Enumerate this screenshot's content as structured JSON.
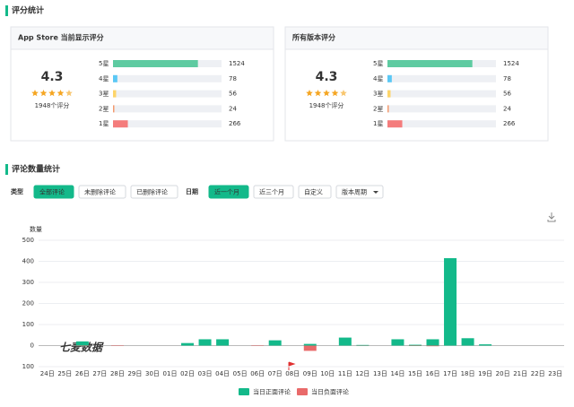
{
  "header": {
    "rating_title": "评分统计",
    "count_title": "评论数量统计"
  },
  "rating_panels": [
    {
      "title": "App Store 当前显示评分",
      "score": 4.3,
      "total_label": "1948个评分",
      "rows": [
        {
          "label": "5星",
          "count": 1524,
          "color": "#5ecba1"
        },
        {
          "label": "4星",
          "count": 78,
          "color": "#5bc8f5"
        },
        {
          "label": "3星",
          "count": 56,
          "color": "#fdd56a"
        },
        {
          "label": "2星",
          "count": 24,
          "color": "#f49a6e"
        },
        {
          "label": "1星",
          "count": 266,
          "color": "#f47c7c"
        }
      ]
    },
    {
      "title": "所有版本评分",
      "score": 4.3,
      "total_label": "1948个评分",
      "rows": [
        {
          "label": "5星",
          "count": 1524,
          "color": "#5ecba1"
        },
        {
          "label": "4星",
          "count": 78,
          "color": "#5bc8f5"
        },
        {
          "label": "3星",
          "count": 56,
          "color": "#fdd56a"
        },
        {
          "label": "2星",
          "count": 24,
          "color": "#f49a6e"
        },
        {
          "label": "1星",
          "count": 266,
          "color": "#f47c7c"
        }
      ]
    }
  ],
  "filters": {
    "type_label": "类型",
    "type_options": [
      "全部评论",
      "未删除评论",
      "已删除评论"
    ],
    "type_active": 0,
    "date_label": "日期",
    "date_options": [
      "近一个月",
      "近三个月",
      "自定义",
      "版本周期"
    ],
    "date_active": 0
  },
  "chart_data": {
    "type": "bar",
    "y_label": "数量",
    "watermark": "七麦数据",
    "categories": [
      "24日",
      "25日",
      "26日",
      "27日",
      "28日",
      "29日",
      "30日",
      "01日",
      "02日",
      "03日",
      "04日",
      "05日",
      "06日",
      "07日",
      "08日",
      "09日",
      "10日",
      "11日",
      "12日",
      "13日",
      "14日",
      "15日",
      "16日",
      "17日",
      "18日",
      "19日",
      "20日",
      "21日",
      "22日",
      "23日"
    ],
    "series": [
      {
        "name": "当日正面评论",
        "color": "#13b98a",
        "values": [
          0,
          0,
          20,
          0,
          0,
          0,
          0,
          0,
          12,
          30,
          30,
          0,
          0,
          25,
          0,
          8,
          0,
          38,
          3,
          0,
          30,
          4,
          30,
          415,
          35,
          6,
          0,
          0,
          0,
          0
        ]
      },
      {
        "name": "当日负面评论",
        "color": "#e96a6a",
        "values": [
          0,
          0,
          -2,
          0,
          -2,
          0,
          0,
          0,
          0,
          0,
          0,
          0,
          -2,
          0,
          0,
          -25,
          0,
          0,
          -1,
          0,
          0,
          -2,
          -3,
          0,
          0,
          0,
          0,
          0,
          0,
          0
        ]
      }
    ],
    "ylim": [
      -100,
      500
    ],
    "yticks": [
      {
        "value": -100,
        "label": "100"
      },
      0,
      100,
      200,
      300,
      400,
      500
    ],
    "grid": true,
    "legend": "bottom"
  }
}
